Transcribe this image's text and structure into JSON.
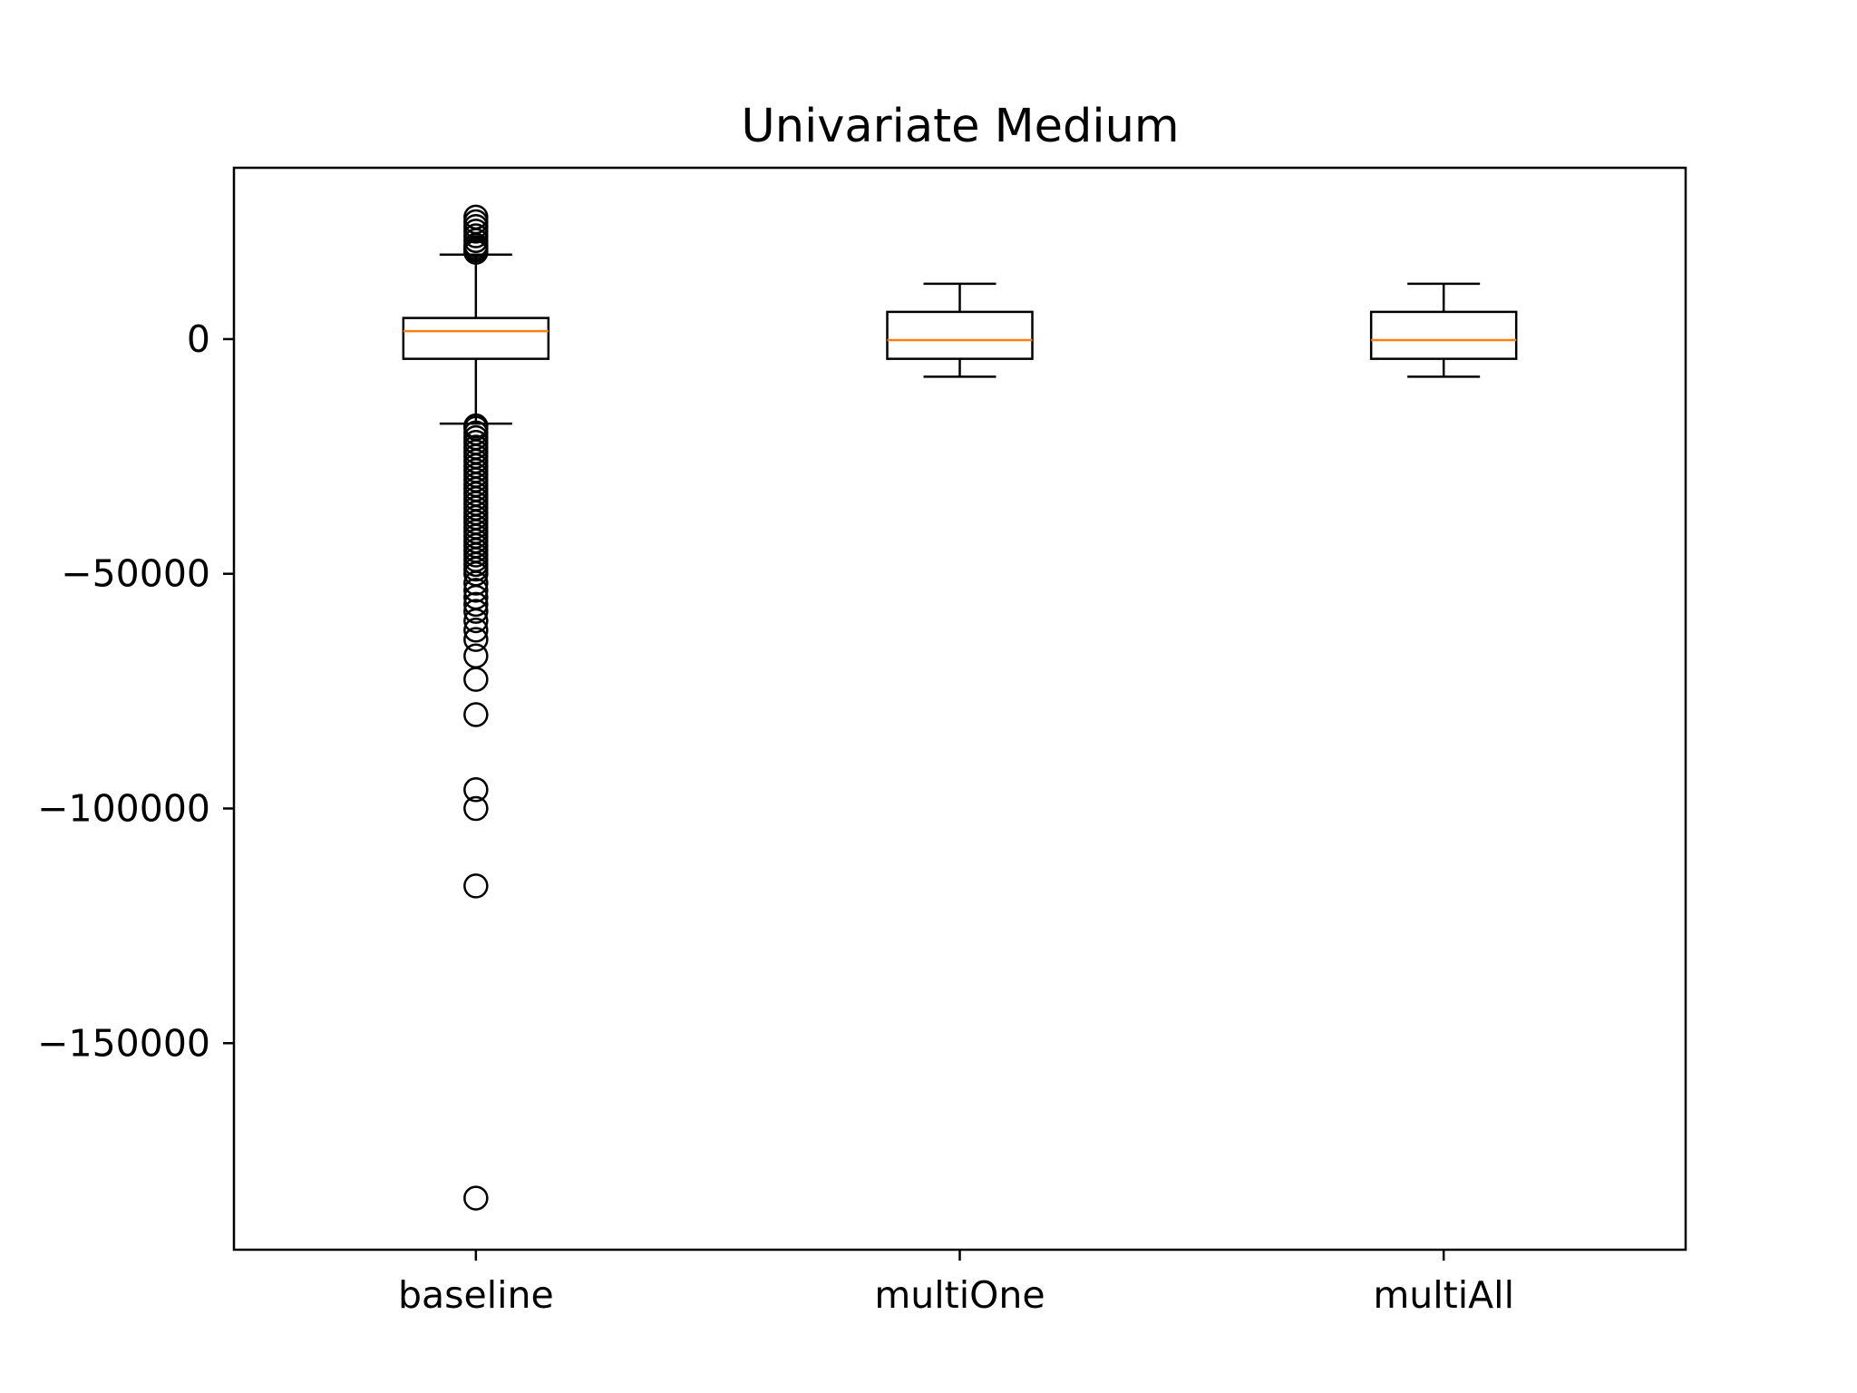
{
  "chart_data": {
    "type": "box",
    "title": "Univariate Medium",
    "xlabel": "",
    "ylabel": "",
    "ylim": [
      -194000,
      36500
    ],
    "yticks": [
      0,
      -50000,
      -100000,
      -150000
    ],
    "ytick_labels": [
      "0",
      "−50000",
      "−100000",
      "−150000"
    ],
    "categories": [
      "baseline",
      "multiOne",
      "multiAll"
    ],
    "grid": false,
    "colors": {
      "box": "#000000",
      "median": "#ff7f0e",
      "background": "#ffffff"
    },
    "boxes": [
      {
        "name": "baseline",
        "whislo": -18000,
        "q1": -4200,
        "median": 1700,
        "q3": 4500,
        "whishi": 18000,
        "fliers": [
          26000,
          25000,
          24000,
          23000,
          22000,
          21000,
          20000,
          19500,
          19000,
          18500,
          -18500,
          -19000,
          -20000,
          -21000,
          -22000,
          -23000,
          -24000,
          -25000,
          -26000,
          -27000,
          -28000,
          -29000,
          -30000,
          -31000,
          -32000,
          -33000,
          -34000,
          -35000,
          -36000,
          -37000,
          -38000,
          -39000,
          -40000,
          -41000,
          -42000,
          -43000,
          -44000,
          -45000,
          -46000,
          -47000,
          -48000,
          -49000,
          -50000,
          -52000,
          -53500,
          -55000,
          -56500,
          -58000,
          -60000,
          -62000,
          -64000,
          -67500,
          -72500,
          -80000,
          -96000,
          -100000,
          -116500,
          -183000
        ]
      },
      {
        "name": "multiOne",
        "whislo": -8000,
        "q1": -4200,
        "median": -200,
        "q3": 5800,
        "whishi": 11800,
        "fliers": []
      },
      {
        "name": "multiAll",
        "whislo": -8000,
        "q1": -4200,
        "median": -200,
        "q3": 5800,
        "whishi": 11800,
        "fliers": []
      }
    ]
  }
}
